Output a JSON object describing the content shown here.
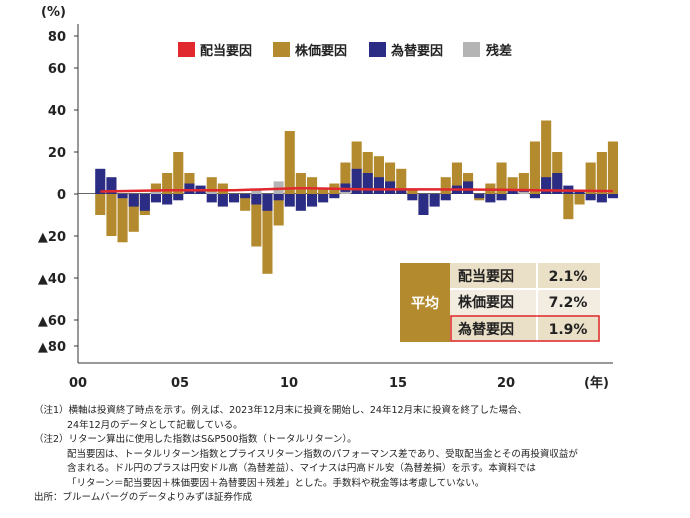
{
  "chart_data": {
    "type": "bar",
    "stacked": true,
    "y_unit_label": "(%)",
    "x_unit_label": "(年)",
    "x_tick_labels": [
      "00",
      "05",
      "10",
      "15",
      "20"
    ],
    "y_tick_labels": [
      "80",
      "60",
      "40",
      "20",
      "0",
      "▲20",
      "▲40",
      "▲60",
      "▲80"
    ],
    "ylim": [
      -80,
      80
    ],
    "x_range": [
      2000,
      2024
    ],
    "legend": [
      {
        "name": "配当要因",
        "color": "#e0282e"
      },
      {
        "name": "株価要因",
        "color": "#b38b2e"
      },
      {
        "name": "為替要因",
        "color": "#2b2c83"
      },
      {
        "name": "残差",
        "color": "#b4b4b4"
      }
    ],
    "series": [
      {
        "name": "配当要因",
        "color": "#e0282e",
        "x": [
          2001,
          2004,
          2007,
          2010,
          2013,
          2016,
          2019,
          2022,
          2024
        ],
        "values": [
          1.2,
          1.8,
          1.8,
          2.8,
          2.2,
          2.2,
          2.0,
          1.6,
          1.4
        ]
      },
      {
        "name": "株価要因",
        "color": "#b38b2e",
        "x": [
          2001,
          2001.5,
          2002,
          2002.5,
          2003,
          2003.5,
          2004,
          2004.5,
          2005,
          2005.5,
          2006,
          2006.5,
          2007,
          2007.5,
          2008,
          2008.5,
          2009,
          2009.5,
          2010,
          2010.5,
          2011,
          2011.5,
          2012,
          2012.5,
          2013,
          2013.5,
          2014,
          2014.5,
          2015,
          2015.5,
          2016,
          2016.5,
          2017,
          2017.5,
          2018,
          2018.5,
          2019,
          2019.5,
          2020,
          2020.5,
          2021,
          2021.5,
          2022,
          2022.5,
          2023,
          2023.5,
          2024
        ],
        "values": [
          -10,
          -20,
          -23,
          -18,
          -10,
          5,
          10,
          20,
          10,
          2,
          8,
          5,
          -2,
          -8,
          -25,
          -38,
          -15,
          30,
          10,
          8,
          3,
          5,
          15,
          25,
          20,
          18,
          15,
          12,
          2,
          -5,
          -2,
          8,
          15,
          10,
          -3,
          5,
          15,
          8,
          10,
          25,
          35,
          20,
          -12,
          -5,
          15,
          20,
          25
        ]
      },
      {
        "name": "為替要因",
        "color": "#2b2c83",
        "x": [
          2001,
          2001.5,
          2002,
          2002.5,
          2003,
          2003.5,
          2004,
          2004.5,
          2005,
          2005.5,
          2006,
          2006.5,
          2007,
          2007.5,
          2008,
          2008.5,
          2009,
          2009.5,
          2010,
          2010.5,
          2011,
          2011.5,
          2012,
          2012.5,
          2013,
          2013.5,
          2014,
          2014.5,
          2015,
          2015.5,
          2016,
          2016.5,
          2017,
          2017.5,
          2018,
          2018.5,
          2019,
          2019.5,
          2020,
          2020.5,
          2021,
          2021.5,
          2022,
          2022.5,
          2023,
          2023.5,
          2024
        ],
        "values": [
          12,
          8,
          -2,
          -6,
          -8,
          -4,
          -5,
          -3,
          5,
          4,
          -4,
          -6,
          -4,
          -2,
          -5,
          -8,
          -3,
          -6,
          -8,
          -6,
          -4,
          -2,
          5,
          12,
          10,
          8,
          6,
          2,
          -3,
          -10,
          -6,
          -3,
          4,
          6,
          -2,
          -4,
          -3,
          2,
          2,
          -2,
          8,
          10,
          4,
          2,
          -3,
          -4,
          -2
        ]
      },
      {
        "name": "残差",
        "color": "#b4b4b4",
        "x": [
          2003.5,
          2006,
          2008,
          2009,
          2012,
          2020
        ],
        "values": [
          1,
          1,
          2,
          6,
          1,
          1
        ]
      }
    ],
    "average_table": {
      "title": "平均",
      "rows": [
        {
          "label": "配当要因",
          "value": "2.1%"
        },
        {
          "label": "株価要因",
          "value": "7.2%"
        },
        {
          "label": "為替要因",
          "value": "1.9%"
        }
      ]
    }
  },
  "notes": [
    {
      "lines": [
        "（注1）横軸は投資終了時点を示す。例えば、2023年12月末に投資を開始し、24年12月末に投資を終了した場合、",
        "24年12月のデータとして記載している。"
      ]
    },
    {
      "lines": [
        "（注2）リターン算出に使用した指数はS&P500指数（トータルリターン）。",
        "配当要因は、トータルリターン指数とプライスリターン指数のパフォーマンス差であり、受取配当金とその再投資収益が",
        "含まれる。ドル円のプラスは円安ドル高（為替差益）、マイナスは円高ドル安（為替差損）を示す。本資料では",
        "「リターン＝配当要因＋株価要因＋為替要因＋残差」とした。手数料や税金等は考慮していない。"
      ]
    },
    {
      "lines": [
        "出所：ブルームバーグのデータよりみずほ証券作成"
      ]
    }
  ]
}
